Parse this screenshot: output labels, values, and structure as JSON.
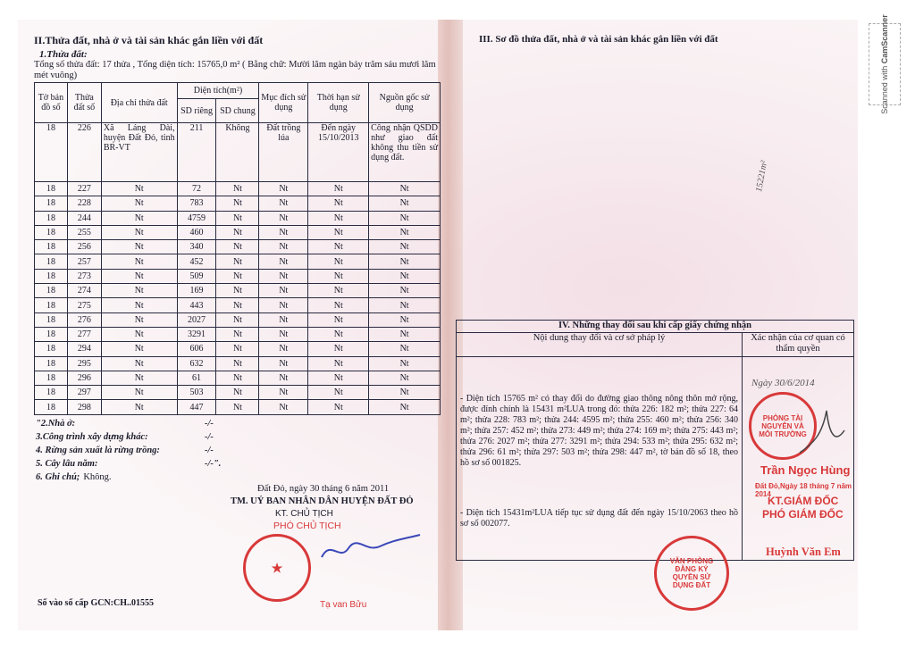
{
  "left": {
    "section_title": "II.Thửa đất, nhà ở và tài sản khác gắn liền với đất",
    "sub1": "1.Thửa đất:",
    "summary": "Tổng số thửa đất: 17 thửa , Tổng diện tích: 15765,0 m² ( Bằng chữ: Mười lăm ngàn bảy trăm sáu mươi lăm mét vuông)",
    "headers": {
      "to_ban_do": "Tờ bản đồ số",
      "thua_dat": "Thửa đất số",
      "dia_chi": "Địa chỉ thửa đất",
      "dien_tich": "Diện tích(m²)",
      "sd_rieng": "SD riêng",
      "sd_chung": "SD chung",
      "muc_dich": "Mục đích sử dụng",
      "thoi_han": "Thời hạn sử dụng",
      "nguon_goc": "Nguồn gốc sử dụng"
    },
    "first_row": [
      "18",
      "226",
      "Xã Láng Dài, huyện Đất Đỏ, tỉnh BR-VT",
      "211",
      "Không",
      "Đất trồng lúa",
      "Đến ngày 15/10/2013",
      "Công nhận QSDD như giao đất không thu tiền sử dụng đất."
    ],
    "rows": [
      [
        "18",
        "227",
        "Nt",
        "72",
        "Nt",
        "Nt",
        "Nt",
        "Nt"
      ],
      [
        "18",
        "228",
        "Nt",
        "783",
        "Nt",
        "Nt",
        "Nt",
        "Nt"
      ],
      [
        "18",
        "244",
        "Nt",
        "4759",
        "Nt",
        "Nt",
        "Nt",
        "Nt"
      ],
      [
        "18",
        "255",
        "Nt",
        "460",
        "Nt",
        "Nt",
        "Nt",
        "Nt"
      ],
      [
        "18",
        "256",
        "Nt",
        "340",
        "Nt",
        "Nt",
        "Nt",
        "Nt"
      ],
      [
        "18",
        "257",
        "Nt",
        "452",
        "Nt",
        "Nt",
        "Nt",
        "Nt"
      ],
      [
        "18",
        "273",
        "Nt",
        "509",
        "Nt",
        "Nt",
        "Nt",
        "Nt"
      ],
      [
        "18",
        "274",
        "Nt",
        "169",
        "Nt",
        "Nt",
        "Nt",
        "Nt"
      ],
      [
        "18",
        "275",
        "Nt",
        "443",
        "Nt",
        "Nt",
        "Nt",
        "Nt"
      ],
      [
        "18",
        "276",
        "Nt",
        "2027",
        "Nt",
        "Nt",
        "Nt",
        "Nt"
      ],
      [
        "18",
        "277",
        "Nt",
        "3291",
        "Nt",
        "Nt",
        "Nt",
        "Nt"
      ],
      [
        "18",
        "294",
        "Nt",
        "606",
        "Nt",
        "Nt",
        "Nt",
        "Nt"
      ],
      [
        "18",
        "295",
        "Nt",
        "632",
        "Nt",
        "Nt",
        "Nt",
        "Nt"
      ],
      [
        "18",
        "296",
        "Nt",
        "61",
        "Nt",
        "Nt",
        "Nt",
        "Nt"
      ],
      [
        "18",
        "297",
        "Nt",
        "503",
        "Nt",
        "Nt",
        "Nt",
        "Nt"
      ],
      [
        "18",
        "298",
        "Nt",
        "447",
        "Nt",
        "Nt",
        "Nt",
        "Nt"
      ]
    ],
    "items": [
      {
        "label": "\"2.Nhà ở:",
        "value": "-/-"
      },
      {
        "label": "3.Công trình xây dựng khác:",
        "value": "-/-"
      },
      {
        "label": "4. Rừng sản xuất là rừng trồng:",
        "value": "-/-"
      },
      {
        "label": "5. Cây lâu năm:",
        "value": "-/-\"."
      },
      {
        "label": "6. Ghi chú;",
        "value": "Không."
      }
    ],
    "date_line": "Đất Đỏ, ngày 30 tháng 6 năm 2011",
    "org": "TM. UỶ BAN NHÂN DÂN HUYỆN ĐẤT ĐỎ",
    "title1": "KT. CHỦ TỊCH",
    "title2": "PHÓ CHỦ TỊCH",
    "signer": "Tạ van Bửu",
    "gcn": "Số vào sổ cấp GCN:CH..01555"
  },
  "right": {
    "section_title": "III. Sơ đồ thửa đất, nhà ở và tài sản khác gắn liền với đất",
    "margin_note": "15221m²",
    "table_title": "IV. Những thay đổi sau khi cấp giấy chứng nhận",
    "col1": "Nội dung thay đổi và cơ sở pháp lý",
    "col2": "Xác nhận của cơ quan có thẩm quyền",
    "change1": "- Diện tích 15765 m² có thay đổi do đường giao thông nông thôn mở rộng, được đính chính là 15431 m²LUA trong đó: thửa 226: 182 m²; thửa 227: 64 m²; thửa 228: 783 m²; thửa 244: 4595 m²; thửa 255: 460 m²; thửa 256: 340 m²; thửa 257: 452 m²; thửa 273: 449 m²; thửa 274: 169 m²; thửa 275: 443 m²; thửa 276: 2027 m²; thửa 277: 3291 m²; thửa 294: 533 m²; thửa 295: 632 m²; thửa 296: 61 m²; thửa 297: 503 m²; thửa 298: 447 m², tờ bản đồ số 18, theo hồ sơ số 001825.",
    "change2": "- Diện tích 15431m²LUA tiếp tục sử dụng đất đến ngày 15/10/2063 theo hồ sơ số 002077.",
    "handwritten_date": "Ngày 30/6/2014",
    "signer1": "Trần Ngọc Hùng",
    "date2": "Đất Đỏ,Ngày 18 tháng 7 năm 2014",
    "title1": "KT.GIÁM ĐỐC",
    "title2": "PHÓ GIÁM ĐỐC",
    "signer2": "Huỳnh Văn Em",
    "stamp1": "PHÒNG TÀI NGUYÊN VÀ MÔI TRƯỜNG",
    "stamp2": "VĂN PHÒNG ĐĂNG KÝ QUYỀN SỬ DỤNG ĐẤT"
  },
  "watermark": {
    "line1": "Scanned with",
    "line2": "CamScanner"
  },
  "colors": {
    "stamp": "#d8393a",
    "ink": "#3a47b8",
    "paper": "#f8eef1"
  }
}
